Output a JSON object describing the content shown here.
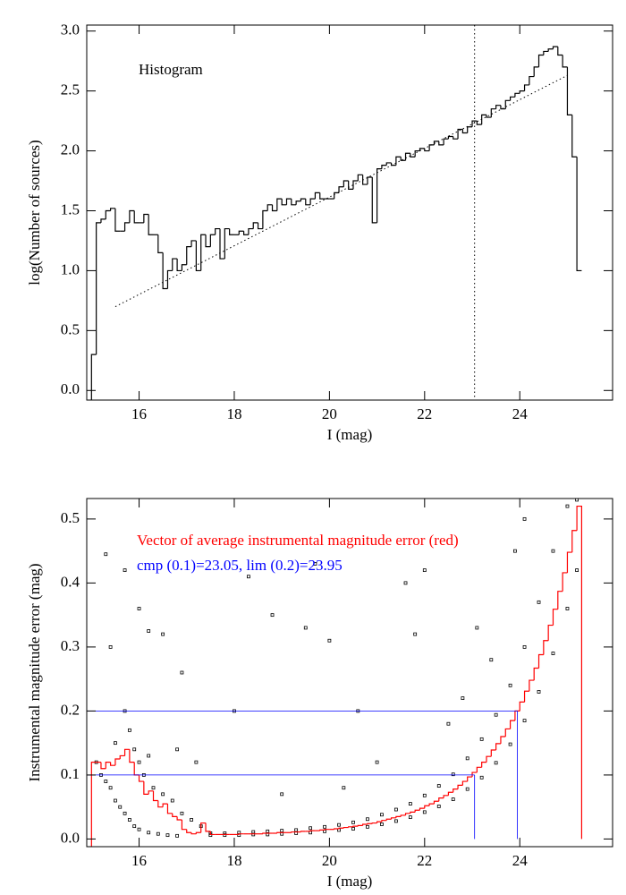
{
  "chart_data": [
    {
      "type": "histogram",
      "xlabel": "I (mag)",
      "ylabel": "log(Number of sources)",
      "annotation": "Histogram",
      "color": "#000000",
      "bins": [
        15.0,
        15.1,
        15.2,
        15.3,
        15.4,
        15.5,
        15.6,
        15.7,
        15.8,
        15.9,
        16.0,
        16.1,
        16.2,
        16.3,
        16.4,
        16.5,
        16.6,
        16.7,
        16.8,
        16.9,
        17.0,
        17.1,
        17.2,
        17.3,
        17.4,
        17.5,
        17.6,
        17.7,
        17.8,
        17.9,
        18.0,
        18.1,
        18.2,
        18.3,
        18.4,
        18.5,
        18.6,
        18.7,
        18.8,
        18.9,
        19.0,
        19.1,
        19.2,
        19.3,
        19.4,
        19.5,
        19.6,
        19.7,
        19.8,
        19.9,
        20.0,
        20.1,
        20.2,
        20.3,
        20.4,
        20.5,
        20.6,
        20.7,
        20.8,
        20.9,
        21.0,
        21.1,
        21.2,
        21.3,
        21.4,
        21.5,
        21.6,
        21.7,
        21.8,
        21.9,
        22.0,
        22.1,
        22.2,
        22.3,
        22.4,
        22.5,
        22.6,
        22.7,
        22.8,
        22.9,
        23.0,
        23.1,
        23.2,
        23.3,
        23.4,
        23.5,
        23.6,
        23.7,
        23.8,
        23.9,
        24.0,
        24.1,
        24.2,
        24.3,
        24.4,
        24.5,
        24.6,
        24.7,
        24.8,
        24.9,
        25.0,
        25.1,
        25.2,
        25.3
      ],
      "values": [
        0.3,
        1.4,
        1.43,
        1.5,
        1.52,
        1.33,
        1.33,
        1.4,
        1.5,
        1.4,
        1.4,
        1.47,
        1.3,
        1.3,
        1.15,
        0.85,
        1.0,
        1.1,
        1.0,
        1.05,
        1.2,
        1.25,
        1.0,
        1.3,
        1.2,
        1.3,
        1.35,
        1.1,
        1.35,
        1.3,
        1.3,
        1.33,
        1.3,
        1.35,
        1.4,
        1.35,
        1.5,
        1.55,
        1.5,
        1.6,
        1.55,
        1.6,
        1.55,
        1.58,
        1.6,
        1.55,
        1.6,
        1.65,
        1.6,
        1.6,
        1.6,
        1.65,
        1.7,
        1.75,
        1.68,
        1.75,
        1.8,
        1.72,
        1.78,
        1.4,
        1.85,
        1.88,
        1.9,
        1.88,
        1.95,
        1.92,
        1.98,
        1.95,
        2.0,
        2.02,
        2.0,
        2.05,
        2.08,
        2.05,
        2.1,
        2.12,
        2.1,
        2.18,
        2.15,
        2.2,
        2.25,
        2.22,
        2.3,
        2.28,
        2.35,
        2.38,
        2.35,
        2.42,
        2.45,
        2.48,
        2.5,
        2.55,
        2.62,
        2.7,
        2.8,
        2.83,
        2.85,
        2.87,
        2.8,
        2.7,
        2.3,
        1.95,
        1.0
      ],
      "fit_line": {
        "x": [
          15.5,
          25.0
        ],
        "y": [
          0.7,
          2.63
        ]
      },
      "vline": 23.05,
      "xlim": [
        14.9,
        25.95
      ],
      "xticks": [
        16,
        18,
        20,
        22,
        24
      ],
      "ylim": [
        -0.08,
        3.05
      ],
      "yticks": [
        {
          "value": 0,
          "label": "0.0"
        },
        0.5,
        {
          "value": 1,
          "label": "1.0"
        },
        1.5,
        {
          "value": 2,
          "label": "2.0"
        },
        2.5,
        {
          "value": 3,
          "label": "3.0"
        }
      ]
    },
    {
      "type": "scatter",
      "xlabel": "I (mag)",
      "ylabel": "Instrumental magnitude error (mag)",
      "color": "#000000",
      "x": [
        15.1,
        15.2,
        15.3,
        15.4,
        15.5,
        15.6,
        15.7,
        15.8,
        15.9,
        16.0,
        16.2,
        16.4,
        16.6,
        16.8,
        15.5,
        15.7,
        15.8,
        15.9,
        16.0,
        16.1,
        16.2,
        16.3,
        16.5,
        16.7,
        16.9,
        17.1,
        17.3,
        17.5,
        17.5,
        17.8,
        17.8,
        18.1,
        18.1,
        18.4,
        18.4,
        18.7,
        18.7,
        19.0,
        19.0,
        19.3,
        19.3,
        19.6,
        19.6,
        19.9,
        19.9,
        20.2,
        20.2,
        20.5,
        20.5,
        20.8,
        20.8,
        21.1,
        21.1,
        21.4,
        21.4,
        21.7,
        21.7,
        22.0,
        22.0,
        22.3,
        22.3,
        22.6,
        22.6,
        22.9,
        22.9,
        23.2,
        23.2,
        23.5,
        23.5,
        23.8,
        23.8,
        24.1,
        24.1,
        24.4,
        24.4,
        24.7,
        24.7,
        25.0,
        25.0,
        25.2,
        25.2,
        15.3,
        15.4,
        15.7,
        16.0,
        16.2,
        16.5,
        16.9,
        17.4,
        18.0,
        18.3,
        18.8,
        19.5,
        19.7,
        20.0,
        20.3,
        20.6,
        21.2,
        21.6,
        21.8,
        22.0,
        22.5,
        22.8,
        23.1,
        23.4,
        23.9,
        24.1,
        17.2,
        16.8,
        19.0,
        21.0
      ],
      "y": [
        0.12,
        0.1,
        0.09,
        0.08,
        0.06,
        0.05,
        0.04,
        0.03,
        0.02,
        0.015,
        0.01,
        0.008,
        0.006,
        0.005,
        0.15,
        0.2,
        0.17,
        0.14,
        0.12,
        0.1,
        0.13,
        0.08,
        0.07,
        0.06,
        0.04,
        0.03,
        0.02,
        0.006,
        0.009,
        0.006,
        0.009,
        0.006,
        0.01,
        0.007,
        0.011,
        0.007,
        0.012,
        0.008,
        0.013,
        0.009,
        0.014,
        0.01,
        0.017,
        0.012,
        0.019,
        0.014,
        0.022,
        0.016,
        0.026,
        0.019,
        0.031,
        0.023,
        0.038,
        0.028,
        0.046,
        0.034,
        0.055,
        0.042,
        0.068,
        0.051,
        0.083,
        0.062,
        0.101,
        0.078,
        0.126,
        0.096,
        0.156,
        0.119,
        0.194,
        0.148,
        0.24,
        0.185,
        0.3,
        0.23,
        0.37,
        0.29,
        0.45,
        0.36,
        0.52,
        0.42,
        0.53,
        0.445,
        0.3,
        0.42,
        0.36,
        0.325,
        0.32,
        0.26,
        0.535,
        0.2,
        0.41,
        0.35,
        0.33,
        0.43,
        0.31,
        0.08,
        0.2,
        0.535,
        0.4,
        0.32,
        0.42,
        0.18,
        0.22,
        0.33,
        0.28,
        0.45,
        0.5,
        0.12,
        0.14,
        0.07,
        0.12
      ],
      "avg_error": {
        "label": "Vector of average instrumental magnitude error (red)",
        "color": "#ff0000",
        "bins": [
          15.0,
          15.1,
          15.2,
          15.3,
          15.4,
          15.5,
          15.6,
          15.7,
          15.8,
          15.9,
          16.0,
          16.1,
          16.2,
          16.3,
          16.4,
          16.5,
          16.6,
          16.7,
          16.8,
          16.9,
          17.0,
          17.1,
          17.2,
          17.3,
          17.4,
          17.5,
          17.6,
          17.7,
          17.8,
          17.9,
          18.0,
          18.1,
          18.2,
          18.3,
          18.4,
          18.5,
          18.6,
          18.7,
          18.8,
          18.9,
          19.0,
          19.1,
          19.2,
          19.3,
          19.4,
          19.5,
          19.6,
          19.7,
          19.8,
          19.9,
          20.0,
          20.1,
          20.2,
          20.3,
          20.4,
          20.5,
          20.6,
          20.7,
          20.8,
          20.9,
          21.0,
          21.1,
          21.2,
          21.3,
          21.4,
          21.5,
          21.6,
          21.7,
          21.8,
          21.9,
          22.0,
          22.1,
          22.2,
          22.3,
          22.4,
          22.5,
          22.6,
          22.7,
          22.8,
          22.9,
          23.0,
          23.1,
          23.2,
          23.3,
          23.4,
          23.5,
          23.6,
          23.7,
          23.8,
          23.9,
          24.0,
          24.1,
          24.2,
          24.3,
          24.4,
          24.5,
          24.6,
          24.7,
          24.8,
          24.9,
          25.0,
          25.1,
          25.2,
          25.3
        ],
        "values": [
          0.12,
          0.12,
          0.11,
          0.12,
          0.115,
          0.125,
          0.13,
          0.14,
          0.12,
          0.1,
          0.09,
          0.07,
          0.075,
          0.06,
          0.05,
          0.055,
          0.04,
          0.035,
          0.03,
          0.015,
          0.01,
          0.008,
          0.01,
          0.025,
          0.012,
          0.007,
          0.007,
          0.007,
          0.007,
          0.007,
          0.007,
          0.008,
          0.008,
          0.008,
          0.008,
          0.008,
          0.009,
          0.009,
          0.009,
          0.01,
          0.01,
          0.01,
          0.011,
          0.011,
          0.012,
          0.012,
          0.013,
          0.013,
          0.014,
          0.015,
          0.015,
          0.016,
          0.017,
          0.018,
          0.019,
          0.02,
          0.021,
          0.023,
          0.024,
          0.025,
          0.027,
          0.029,
          0.031,
          0.033,
          0.035,
          0.037,
          0.04,
          0.042,
          0.045,
          0.048,
          0.052,
          0.055,
          0.059,
          0.064,
          0.068,
          0.073,
          0.078,
          0.084,
          0.09,
          0.097,
          0.104,
          0.112,
          0.12,
          0.129,
          0.139,
          0.149,
          0.16,
          0.172,
          0.185,
          0.2,
          0.214,
          0.231,
          0.248,
          0.267,
          0.288,
          0.31,
          0.334,
          0.359,
          0.387,
          0.416,
          0.448,
          0.482,
          0.52
        ]
      },
      "limits": {
        "label": "cmp (0.1)=23.05, lim (0.2)=23.95",
        "color": "#0000ff",
        "lines": [
          {
            "x": 23.05,
            "y": 0.1
          },
          {
            "x": 23.95,
            "y": 0.2
          }
        ]
      },
      "xlim": [
        14.9,
        25.95
      ],
      "xticks": [
        16,
        18,
        20,
        22,
        24
      ],
      "ylim": [
        -0.012,
        0.532
      ],
      "yticks": [
        {
          "value": 0,
          "label": "0.0"
        },
        0.1,
        0.2,
        0.3,
        0.4,
        0.5
      ]
    }
  ]
}
